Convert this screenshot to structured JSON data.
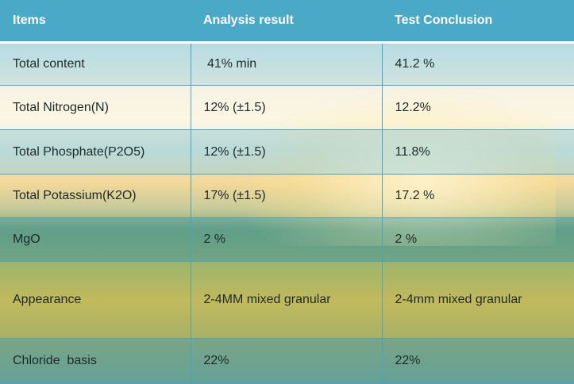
{
  "table": {
    "headers": [
      "Items",
      "Analysis result",
      "Test Conclusion"
    ],
    "rows": [
      [
        "Total content",
        " 41% min",
        "41.2 %"
      ],
      [
        "Total Nitrogen(N)",
        "12% (±1.5)",
        "12.2%"
      ],
      [
        "Total Phosphate(P2O5)",
        "12% (±1.5)",
        "11.8%"
      ],
      [
        "Total Potassium(K2O)",
        "17% (±1.5)",
        "17.2 %"
      ],
      [
        "MgO",
        "2 %",
        "2 %"
      ],
      [
        "Appearance",
        "2-4MM mixed granular",
        "2-4mm mixed granular"
      ],
      [
        "Chloride  basis",
        "22%",
        "22%"
      ]
    ]
  },
  "colors": {
    "header_bg": "#4aa9c7",
    "border": "#4aa3bf"
  }
}
